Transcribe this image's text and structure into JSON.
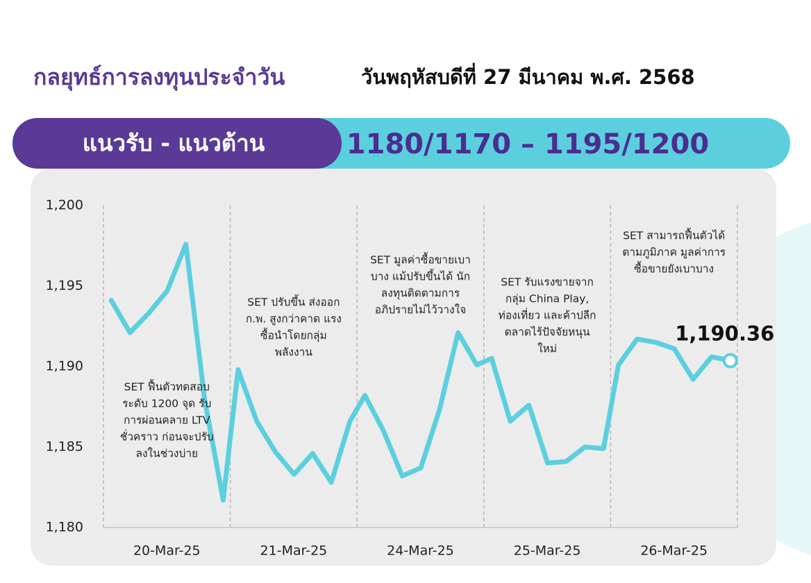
{
  "header": {
    "title": "กลยุทธ์การลงทุนประจำวัน",
    "date": "วันพฤหัสบดีที่ 27 มีนาคม พ.ศ. 2568"
  },
  "banner": {
    "label": "แนวรับ - แนวต้าน",
    "levels": "1180/1170 – 1195/1200"
  },
  "chart_data": {
    "type": "line",
    "color": "#5ccfdf",
    "categories": [
      "20-Mar-25",
      "21-Mar-25",
      "24-Mar-25",
      "25-Mar-25",
      "26-Mar-25"
    ],
    "values": [
      [
        1194.1,
        1192.1,
        1193.3,
        1194.7,
        1197.6,
        1188.0,
        1181.7
      ],
      [
        1189.8,
        1186.6,
        1184.7,
        1183.3,
        1184.6,
        1182.8,
        1186.6
      ],
      [
        1188.2,
        1186.0,
        1183.2,
        1183.7,
        1187.3,
        1192.1,
        1190.1
      ],
      [
        1190.5,
        1186.6,
        1187.6,
        1184.0,
        1184.1,
        1185.0,
        1184.9
      ],
      [
        1190.1,
        1191.7,
        1191.5,
        1191.1,
        1189.2,
        1190.6,
        1190.36
      ]
    ],
    "value_labels": [
      [
        null,
        null,
        null,
        null,
        null,
        null,
        null
      ],
      [
        null,
        null,
        null,
        null,
        null,
        null,
        null
      ],
      [
        null,
        null,
        null,
        null,
        null,
        null,
        null
      ],
      [
        null,
        null,
        null,
        null,
        null,
        null,
        null
      ],
      [
        null,
        null,
        null,
        null,
        null,
        null,
        "1,190.36"
      ]
    ],
    "ylim": [
      1180,
      1200
    ],
    "yticks": [
      {
        "value": 1180,
        "label": "1,180"
      },
      {
        "value": 1185,
        "label": "1,185"
      },
      {
        "value": 1190,
        "label": "1,190"
      },
      {
        "value": 1195,
        "label": "1,195"
      },
      {
        "value": 1200,
        "label": "1,200"
      }
    ],
    "annotations": [
      [
        "SET ฟื้นตัวทดสอบ",
        "ระดับ 1200 จุด รับ",
        "การผ่อนคลาย LTV",
        "ชั่วคราว ก่อนจะปรับ",
        "ลงในช่วงบ่าย"
      ],
      [
        "SET ปรับขึ้น ส่งออก",
        "ก.พ. สูงกว่าคาด แรง",
        "ซื้อนำโดยกลุ่ม",
        "พลังงาน"
      ],
      [
        "SET มูลค่าซื้อขายเบา",
        "บาง แม้ปรับขึ้นได้ นัก",
        "ลงทุนติดตามการ",
        "อภิปรายไม่ไว้วางใจ"
      ],
      [
        "SET รับแรงขายจาก",
        "กลุ่ม China Play,",
        "ท่องเที่ยว และค้าปลีก",
        "ตลาดไร้ปัจจัยหนุน",
        "ใหม่"
      ],
      [
        "SET สามารถฟื้นตัวได้",
        "ตามภูมิภาค มูลค่าการ",
        "ซื้อขายยังเบาบาง"
      ]
    ]
  }
}
